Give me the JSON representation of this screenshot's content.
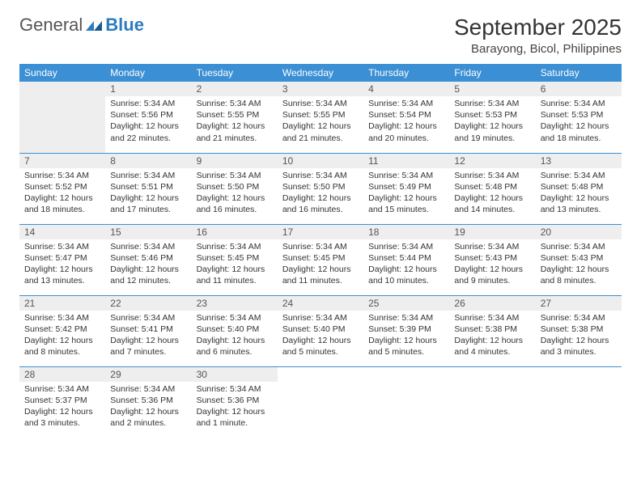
{
  "logo": {
    "text1": "General",
    "text2": "Blue"
  },
  "title": "September 2025",
  "location": "Barayong, Bicol, Philippines",
  "colors": {
    "header_bg": "#3b8fd4",
    "header_text": "#ffffff",
    "daynum_bg": "#eeeeee",
    "border": "#3b8fd4",
    "logo_blue": "#2b7bbf"
  },
  "day_headers": [
    "Sunday",
    "Monday",
    "Tuesday",
    "Wednesday",
    "Thursday",
    "Friday",
    "Saturday"
  ],
  "weeks": [
    [
      null,
      {
        "n": "1",
        "sr": "5:34 AM",
        "ss": "5:56 PM",
        "dl": "12 hours and 22 minutes."
      },
      {
        "n": "2",
        "sr": "5:34 AM",
        "ss": "5:55 PM",
        "dl": "12 hours and 21 minutes."
      },
      {
        "n": "3",
        "sr": "5:34 AM",
        "ss": "5:55 PM",
        "dl": "12 hours and 21 minutes."
      },
      {
        "n": "4",
        "sr": "5:34 AM",
        "ss": "5:54 PM",
        "dl": "12 hours and 20 minutes."
      },
      {
        "n": "5",
        "sr": "5:34 AM",
        "ss": "5:53 PM",
        "dl": "12 hours and 19 minutes."
      },
      {
        "n": "6",
        "sr": "5:34 AM",
        "ss": "5:53 PM",
        "dl": "12 hours and 18 minutes."
      }
    ],
    [
      {
        "n": "7",
        "sr": "5:34 AM",
        "ss": "5:52 PM",
        "dl": "12 hours and 18 minutes."
      },
      {
        "n": "8",
        "sr": "5:34 AM",
        "ss": "5:51 PM",
        "dl": "12 hours and 17 minutes."
      },
      {
        "n": "9",
        "sr": "5:34 AM",
        "ss": "5:50 PM",
        "dl": "12 hours and 16 minutes."
      },
      {
        "n": "10",
        "sr": "5:34 AM",
        "ss": "5:50 PM",
        "dl": "12 hours and 16 minutes."
      },
      {
        "n": "11",
        "sr": "5:34 AM",
        "ss": "5:49 PM",
        "dl": "12 hours and 15 minutes."
      },
      {
        "n": "12",
        "sr": "5:34 AM",
        "ss": "5:48 PM",
        "dl": "12 hours and 14 minutes."
      },
      {
        "n": "13",
        "sr": "5:34 AM",
        "ss": "5:48 PM",
        "dl": "12 hours and 13 minutes."
      }
    ],
    [
      {
        "n": "14",
        "sr": "5:34 AM",
        "ss": "5:47 PM",
        "dl": "12 hours and 13 minutes."
      },
      {
        "n": "15",
        "sr": "5:34 AM",
        "ss": "5:46 PM",
        "dl": "12 hours and 12 minutes."
      },
      {
        "n": "16",
        "sr": "5:34 AM",
        "ss": "5:45 PM",
        "dl": "12 hours and 11 minutes."
      },
      {
        "n": "17",
        "sr": "5:34 AM",
        "ss": "5:45 PM",
        "dl": "12 hours and 11 minutes."
      },
      {
        "n": "18",
        "sr": "5:34 AM",
        "ss": "5:44 PM",
        "dl": "12 hours and 10 minutes."
      },
      {
        "n": "19",
        "sr": "5:34 AM",
        "ss": "5:43 PM",
        "dl": "12 hours and 9 minutes."
      },
      {
        "n": "20",
        "sr": "5:34 AM",
        "ss": "5:43 PM",
        "dl": "12 hours and 8 minutes."
      }
    ],
    [
      {
        "n": "21",
        "sr": "5:34 AM",
        "ss": "5:42 PM",
        "dl": "12 hours and 8 minutes."
      },
      {
        "n": "22",
        "sr": "5:34 AM",
        "ss": "5:41 PM",
        "dl": "12 hours and 7 minutes."
      },
      {
        "n": "23",
        "sr": "5:34 AM",
        "ss": "5:40 PM",
        "dl": "12 hours and 6 minutes."
      },
      {
        "n": "24",
        "sr": "5:34 AM",
        "ss": "5:40 PM",
        "dl": "12 hours and 5 minutes."
      },
      {
        "n": "25",
        "sr": "5:34 AM",
        "ss": "5:39 PM",
        "dl": "12 hours and 5 minutes."
      },
      {
        "n": "26",
        "sr": "5:34 AM",
        "ss": "5:38 PM",
        "dl": "12 hours and 4 minutes."
      },
      {
        "n": "27",
        "sr": "5:34 AM",
        "ss": "5:38 PM",
        "dl": "12 hours and 3 minutes."
      }
    ],
    [
      {
        "n": "28",
        "sr": "5:34 AM",
        "ss": "5:37 PM",
        "dl": "12 hours and 3 minutes."
      },
      {
        "n": "29",
        "sr": "5:34 AM",
        "ss": "5:36 PM",
        "dl": "12 hours and 2 minutes."
      },
      {
        "n": "30",
        "sr": "5:34 AM",
        "ss": "5:36 PM",
        "dl": "12 hours and 1 minute."
      },
      null,
      null,
      null,
      null
    ]
  ],
  "labels": {
    "sunrise": "Sunrise:",
    "sunset": "Sunset:",
    "daylight": "Daylight:"
  }
}
